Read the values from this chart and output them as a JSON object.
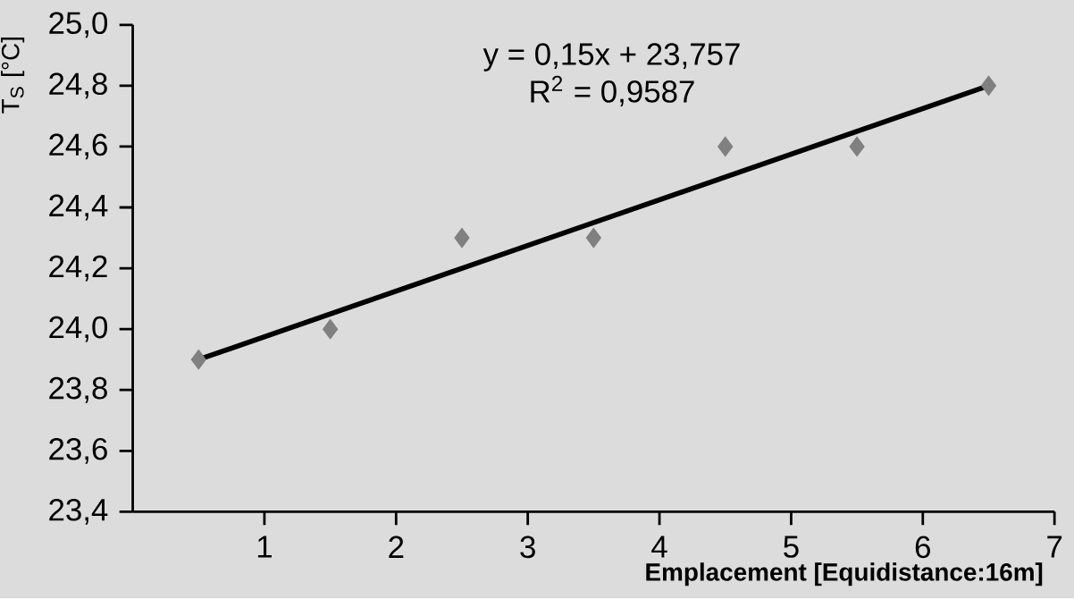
{
  "chart_data": {
    "type": "scatter",
    "xlabel": "Emplacement [Equidistance:16m]",
    "ylabel": "T$_{S}$ [°C]",
    "annotations": [
      "y = 0,15x + 23,757",
      "R$^{2}$ = 0,9587"
    ],
    "series": [
      {
        "type": "scatter",
        "color": "#808080",
        "marker": "diamond",
        "x": [
          0.5,
          1.5,
          2.5,
          3.5,
          4.5,
          5.5,
          6.5
        ],
        "values": [
          23.9,
          24.0,
          24.3,
          24.3,
          24.6,
          24.6,
          24.8
        ]
      },
      {
        "type": "line",
        "color": "#000000",
        "marker": "none",
        "line_style": "solid",
        "x": [
          0.5,
          6.5
        ],
        "values": [
          23.9,
          24.8
        ]
      }
    ],
    "xlim": [
      0,
      7
    ],
    "xticks": [
      1,
      2,
      3,
      4,
      5,
      6,
      7
    ],
    "ylim": [
      23.4,
      25.0
    ],
    "yticks": [
      {
        "value": 23.4,
        "label": "23,4"
      },
      {
        "value": 23.6,
        "label": "23,6"
      },
      {
        "value": 23.8,
        "label": "23,8"
      },
      {
        "value": 24.0,
        "label": "24,0"
      },
      {
        "value": 24.2,
        "label": "24,2"
      },
      {
        "value": 24.4,
        "label": "24,4"
      },
      {
        "value": 24.6,
        "label": "24,6"
      },
      {
        "value": 24.8,
        "label": "24,8"
      },
      {
        "value": 25.0,
        "label": "25,0"
      }
    ],
    "grid": false
  }
}
